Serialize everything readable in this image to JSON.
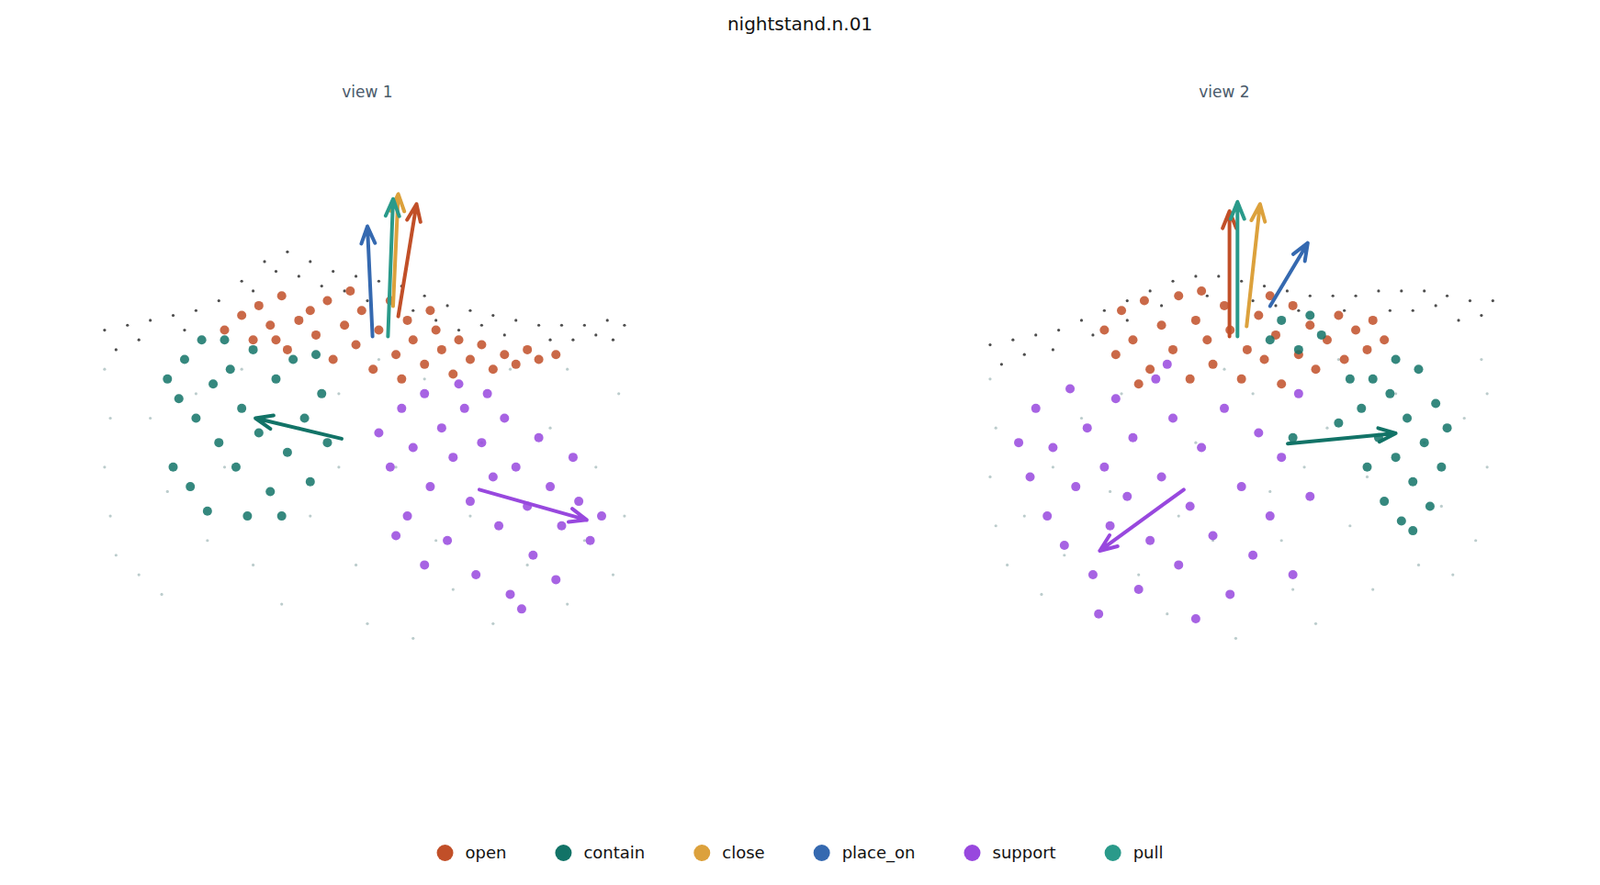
{
  "chart_data": {
    "type": "scatter",
    "title": "nightstand.n.01",
    "tick_labels": false,
    "legend": "bottom",
    "panels": [
      {
        "title": "view 1",
        "xlim": [
          0,
          100
        ],
        "ylim": [
          0,
          100
        ],
        "series": [
          {
            "color": "#3a3a3a",
            "x": [
              4,
              8,
              12,
              16,
              20,
              24,
              28,
              32,
              36,
              40,
              44,
              48,
              52,
              56,
              60,
              64,
              68,
              72,
              76,
              80,
              84,
              88,
              92,
              95,
              10,
              18,
              30,
              38,
              46,
              62,
              74,
              86,
              93,
              6,
              50,
              70,
              90,
              34,
              42,
              58,
              66,
              82
            ],
            "y": [
              68,
              69,
              70,
              71,
              72,
              74,
              78,
              82,
              84,
              82,
              80,
              79,
              78,
              77,
              75,
              73,
              72,
              71,
              70,
              69,
              69,
              69,
              70,
              69,
              66,
              68,
              76,
              79,
              76,
              70,
              67,
              66,
              66,
              64,
              74,
              69,
              67,
              80,
              77,
              72,
              68,
              66
            ]
          },
          {
            "color": "#b4c6c6",
            "x": [
              4,
              5,
              4,
              5,
              6,
              10,
              14,
              20,
              25,
              30,
              35,
              40,
              45,
              48,
              50,
              55,
              58,
              62,
              65,
              70,
              72,
              78,
              82,
              85,
              90,
              94,
              95,
              93,
              88,
              60,
              38,
              28,
              15,
              22,
              45,
              52,
              12,
              68,
              75,
              85
            ],
            "y": [
              60,
              50,
              40,
              30,
              22,
              18,
              14,
              55,
              40,
              20,
              12,
              30,
              55,
              20,
              8,
              40,
              5,
              25,
              15,
              45,
              8,
              20,
              48,
              12,
              40,
              55,
              30,
              18,
              25,
              58,
              48,
              60,
              35,
              25,
              40,
              62,
              50,
              30,
              60,
              60
            ]
          },
          {
            "name": "open",
            "color": "#c14f28",
            "x": [
              25,
              28,
              30,
              31,
              33,
              35,
              36,
              38,
              40,
              41,
              43,
              44,
              46,
              48,
              49,
              51,
              52,
              54,
              55,
              57,
              58,
              60,
              62,
              63,
              65,
              66,
              68,
              70,
              72,
              74,
              76,
              78,
              80,
              83,
              34,
              47,
              56,
              61
            ],
            "y": [
              68,
              71,
              66,
              73,
              69,
              75,
              64,
              70,
              72,
              67,
              74,
              62,
              69,
              65,
              72,
              60,
              68,
              74,
              63,
              70,
              66,
              61,
              68,
              64,
              59,
              66,
              62,
              65,
              60,
              63,
              61,
              64,
              62,
              63,
              66,
              76,
              58,
              72
            ],
            "arrow": {
              "x": [
                55.4,
                58.6
              ],
              "y": [
                70.8,
                93.75
              ]
            }
          },
          {
            "name": "contain",
            "color": "#127367",
            "x": [
              15,
              17,
              18,
              20,
              21,
              23,
              24,
              26,
              27,
              28,
              30,
              31,
              33,
              34,
              36,
              37,
              39,
              40,
              42,
              43,
              16,
              19,
              22,
              29,
              35,
              25,
              41
            ],
            "y": [
              58,
              54,
              62,
              50,
              66,
              57,
              45,
              60,
              40,
              52,
              64,
              47,
              35,
              58,
              43,
              62,
              50,
              37,
              55,
              45,
              40,
              36,
              31,
              30,
              30,
              66,
              63
            ],
            "arrow": {
              "x": [
                45.5,
                30.4
              ],
              "y": [
                45.8,
                50
              ]
            }
          },
          {
            "name": "close",
            "color": "#dca13c",
            "x": [],
            "y": [],
            "arrow": {
              "x": [
                54.5,
                55.4
              ],
              "y": [
                72.9,
                95.8
              ]
            }
          },
          {
            "name": "place_on",
            "color": "#3569b0",
            "x": [],
            "y": [],
            "arrow": {
              "x": [
                50.9,
                50
              ],
              "y": [
                66.7,
                89.2
              ]
            }
          },
          {
            "name": "support",
            "color": "#9848de",
            "x": [
              52,
              54,
              56,
              57,
              58,
              60,
              61,
              63,
              64,
              65,
              67,
              68,
              69,
              70,
              72,
              73,
              74,
              75,
              76,
              78,
              79,
              80,
              82,
              83,
              84,
              86,
              87,
              89,
              91,
              66,
              71,
              60,
              77,
              55
            ],
            "y": [
              47,
              40,
              52,
              30,
              44,
              55,
              36,
              48,
              25,
              42,
              52,
              33,
              18,
              45,
              38,
              28,
              50,
              14,
              40,
              32,
              22,
              46,
              36,
              17,
              28,
              42,
              33,
              25,
              30,
              57,
              55,
              20,
              11,
              26
            ],
            "arrow": {
              "x": [
                69.6,
                88.4
              ],
              "y": [
                35.4,
                29.2
              ]
            }
          },
          {
            "name": "pull",
            "color": "#2a9a8a",
            "x": [],
            "y": [],
            "arrow": {
              "x": [
                53.6,
                54.5
              ],
              "y": [
                66.7,
                94.8
              ]
            }
          }
        ]
      },
      {
        "title": "view 2",
        "xlim": [
          0,
          100
        ],
        "ylim": [
          0,
          100
        ],
        "series": [
          {
            "color": "#3a3a3a",
            "x": [
              9,
              13,
              17,
              21,
              25,
              29,
              33,
              37,
              41,
              45,
              49,
              53,
              57,
              61,
              65,
              69,
              73,
              77,
              81,
              85,
              89,
              93,
              97,
              15,
              27,
              39,
              55,
              71,
              83,
              95,
              11,
              33,
              47,
              63,
              79,
              91,
              20,
              59,
              87
            ],
            "y": [
              65,
              66,
              67,
              68,
              70,
              72,
              74,
              76,
              78,
              79,
              79,
              78,
              77,
              76,
              75,
              75,
              75,
              76,
              76,
              76,
              75,
              74,
              74,
              63,
              67,
              73,
              74,
              72,
              72,
              71,
              61,
              70,
              75,
              72,
              72,
              70,
              64,
              73,
              73
            ]
          },
          {
            "color": "#b4c6c6",
            "x": [
              9,
              10,
              9,
              10,
              12,
              18,
              25,
              30,
              35,
              40,
              45,
              48,
              52,
              55,
              58,
              62,
              66,
              68,
              72,
              76,
              80,
              84,
              88,
              92,
              95,
              96,
              94,
              90,
              70,
              50,
              20,
              15,
              42,
              60,
              75,
              85,
              32,
              22,
              64,
              96
            ],
            "y": [
              58,
              48,
              38,
              28,
              20,
              14,
              50,
              35,
              18,
              10,
              45,
              25,
              5,
              55,
              35,
              15,
              8,
              48,
              28,
              15,
              55,
              20,
              32,
              50,
              62,
              40,
              25,
              18,
              62,
              60,
              40,
              30,
              30,
              25,
              38,
              45,
              55,
              22,
              40,
              55
            ]
          },
          {
            "name": "open",
            "color": "#c14f28",
            "x": [
              29,
              31,
              32,
              34,
              36,
              37,
              39,
              41,
              42,
              44,
              45,
              47,
              48,
              50,
              51,
              53,
              54,
              56,
              57,
              59,
              60,
              62,
              63,
              65,
              66,
              68,
              70,
              71,
              73,
              75,
              76,
              78,
              35,
              46,
              58
            ],
            "y": [
              68,
              63,
              72,
              66,
              74,
              60,
              69,
              64,
              75,
              58,
              70,
              66,
              61,
              73,
              68,
              58,
              64,
              71,
              62,
              67,
              57,
              73,
              63,
              69,
              60,
              66,
              71,
              62,
              68,
              64,
              70,
              66,
              57,
              76,
              75
            ],
            "arrow": {
              "x": [
                50.9,
                50.9
              ],
              "y": [
                66.7,
                92.3
              ]
            }
          },
          {
            "name": "contain",
            "color": "#127367",
            "x": [
              74,
              75,
              76,
              77,
              78,
              79,
              80,
              81,
              82,
              83,
              84,
              85,
              86,
              87,
              88,
              89,
              80,
              83,
              58,
              60,
              63,
              65,
              67,
              62,
              70,
              72
            ],
            "y": [
              52,
              40,
              58,
              46,
              33,
              55,
              42,
              29,
              50,
              37,
              60,
              45,
              32,
              53,
              40,
              48,
              62,
              27,
              66,
              70,
              64,
              71,
              67,
              46,
              49,
              58
            ],
            "arrow": {
              "x": [
                61.1,
                80
              ],
              "y": [
                44.8,
                46.9
              ]
            }
          },
          {
            "name": "close",
            "color": "#dca13c",
            "x": [],
            "y": [],
            "arrow": {
              "x": [
                53.9,
                56.25
              ],
              "y": [
                68.75,
                93.75
              ]
            }
          },
          {
            "name": "place_on",
            "color": "#3569b0",
            "x": [],
            "y": [],
            "arrow": {
              "x": [
                58,
                64.6
              ],
              "y": [
                72.9,
                85.8
              ]
            }
          },
          {
            "name": "support",
            "color": "#9848de",
            "x": [
              14,
              16,
              17,
              19,
              20,
              22,
              23,
              24,
              26,
              27,
              29,
              30,
              31,
              33,
              34,
              35,
              37,
              38,
              39,
              41,
              42,
              44,
              45,
              46,
              48,
              50,
              51,
              53,
              55,
              56,
              58,
              60,
              62,
              63,
              65,
              40,
              28
            ],
            "y": [
              45,
              38,
              52,
              30,
              44,
              24,
              56,
              36,
              48,
              18,
              40,
              28,
              54,
              34,
              46,
              15,
              25,
              58,
              38,
              50,
              20,
              32,
              9,
              44,
              26,
              52,
              14,
              36,
              22,
              47,
              30,
              42,
              18,
              55,
              34,
              61,
              10
            ],
            "arrow": {
              "x": [
                42.9,
                28.2
              ],
              "y": [
                35.4,
                22.9
              ]
            }
          },
          {
            "name": "pull",
            "color": "#2a9a8a",
            "x": [],
            "y": [],
            "arrow": {
              "x": [
                52.3,
                52.3
              ],
              "y": [
                66.7,
                94.2
              ]
            }
          }
        ]
      }
    ]
  }
}
